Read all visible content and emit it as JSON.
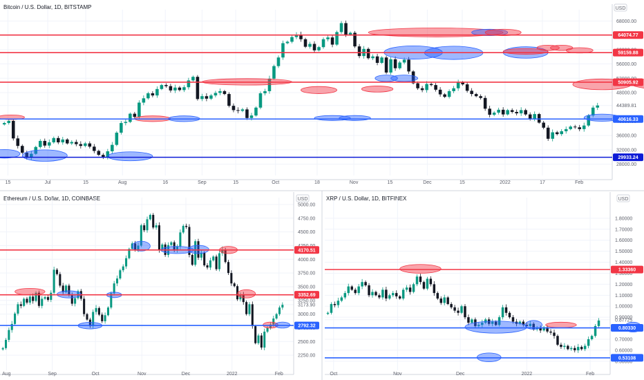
{
  "colors": {
    "up": "#089981",
    "down": "#131722",
    "red": "#f23645",
    "blue": "#2962ff",
    "redFill": "rgba(242,54,69,0.45)",
    "blueFill": "rgba(41,98,255,0.45)",
    "grid": "#f0f3fa",
    "axis": "#d1d4dc"
  },
  "chart_data": [
    {
      "type": "candlestick",
      "title": "Bitcoin / U.S. Dollar, 1D, BITSTAMP",
      "currency": "USD",
      "ylim": [
        26000,
        70000
      ],
      "y_ticks": [
        "68000.00",
        "64000.00",
        "60000.00",
        "56000.00",
        "52000.00",
        "48000.00",
        "44389.81",
        "40000.00",
        "36000.00",
        "32000.00",
        "28000.00"
      ],
      "x_ticks": [
        "15",
        "Jul",
        "15",
        "Aug",
        "16",
        "Sep",
        "15",
        "Oct",
        "18",
        "Nov",
        "15",
        "Dec",
        "15",
        "2022",
        "17",
        "Feb"
      ],
      "levels": [
        {
          "label": "64074.77",
          "color": "red"
        },
        {
          "label": "59159.88",
          "color": "red"
        },
        {
          "label": "50905.92",
          "color": "red"
        },
        {
          "label": "40616.33",
          "color": "blue"
        },
        {
          "label": "29933.24",
          "color": "darkblue"
        }
      ],
      "closes": [
        39500,
        40100,
        35200,
        33100,
        31200,
        29800,
        30900,
        32800,
        34500,
        33200,
        34100,
        35300,
        34100,
        34900,
        33800,
        34200,
        33600,
        33100,
        33800,
        32900,
        31700,
        30600,
        29900,
        31600,
        33400,
        36800,
        39500,
        39800,
        42100,
        41200,
        45200,
        46400,
        47800,
        47200,
        49000,
        50100,
        49800,
        48600,
        49400,
        48700,
        49500,
        51400,
        52400,
        46200,
        47000,
        46300,
        47200,
        47900,
        48400,
        47600,
        44300,
        43100,
        42900,
        43300,
        40900,
        41600,
        43800,
        47800,
        48400,
        51900,
        55400,
        57800,
        61800,
        62200,
        63500,
        64200,
        62900,
        60800,
        61600,
        59800,
        60700,
        62900,
        63400,
        61400,
        64900,
        67400,
        64200,
        64700,
        60900,
        58200,
        60200,
        57600,
        58100,
        56300,
        57800,
        53600,
        57300,
        54800,
        56400,
        57200,
        53900,
        50600,
        49200,
        48700,
        50400,
        50100,
        48800,
        47500,
        46800,
        48400,
        49200,
        50800,
        50300,
        48500,
        47600,
        47000,
        46500,
        43500,
        41800,
        42400,
        43200,
        41900,
        43100,
        42600,
        42200,
        43100,
        41900,
        40700,
        42000,
        39600,
        38200,
        35100,
        36900,
        36400,
        37200,
        37800,
        38500,
        38300,
        37800,
        38800,
        41600,
        43800,
        44400
      ],
      "ellipses": [
        {
          "c": "red",
          "i": 1.5,
          "v": 41100,
          "w": 6,
          "h": 1300
        },
        {
          "c": "blue",
          "i": 0,
          "v": 30900,
          "w": 7,
          "h": 2400
        },
        {
          "c": "blue",
          "i": 9,
          "v": 30400,
          "w": 10,
          "h": 3200
        },
        {
          "c": "blue",
          "i": 28,
          "v": 30200,
          "w": 10,
          "h": 2500
        },
        {
          "c": "red",
          "i": 33,
          "v": 40700,
          "w": 8,
          "h": 1600
        },
        {
          "c": "blue",
          "i": 40,
          "v": 40700,
          "w": 7,
          "h": 1600
        },
        {
          "c": "red",
          "i": 54,
          "v": 51000,
          "w": 20,
          "h": 1800
        },
        {
          "c": "red",
          "i": 70,
          "v": 48700,
          "w": 8,
          "h": 2000
        },
        {
          "c": "blue",
          "i": 73,
          "v": 40900,
          "w": 8,
          "h": 1400
        },
        {
          "c": "blue",
          "i": 78,
          "v": 40900,
          "w": 7,
          "h": 1400
        },
        {
          "c": "red",
          "i": 83,
          "v": 49000,
          "w": 7,
          "h": 1700
        },
        {
          "c": "blue",
          "i": 85,
          "v": 52000,
          "w": 5,
          "h": 1800
        },
        {
          "c": "blue",
          "i": 89,
          "v": 52000,
          "w": 6,
          "h": 1800
        },
        {
          "c": "red",
          "i": 96,
          "v": 64800,
          "w": 30,
          "h": 2500
        },
        {
          "c": "blue",
          "i": 91,
          "v": 59200,
          "w": 13,
          "h": 3700
        },
        {
          "c": "blue",
          "i": 100,
          "v": 59100,
          "w": 13,
          "h": 3700
        },
        {
          "c": "blue",
          "i": 108,
          "v": 64800,
          "w": 8,
          "h": 1800
        },
        {
          "c": "red",
          "i": 111,
          "v": 64800,
          "w": 8,
          "h": 1800
        },
        {
          "c": "blue",
          "i": 116,
          "v": 59200,
          "w": 10,
          "h": 3200
        },
        {
          "c": "red",
          "i": 116,
          "v": 59500,
          "w": 10,
          "h": 1600
        },
        {
          "c": "red",
          "i": 121,
          "v": 60500,
          "w": 5,
          "h": 1500
        },
        {
          "c": "red",
          "i": 124,
          "v": 60500,
          "w": 5,
          "h": 1500
        },
        {
          "c": "red",
          "i": 128,
          "v": 59800,
          "w": 6,
          "h": 1500
        },
        {
          "c": "red",
          "i": 133,
          "v": 50300,
          "w": 13,
          "h": 3000
        },
        {
          "c": "blue",
          "i": 133,
          "v": 41000,
          "w": 8,
          "h": 2000
        },
        {
          "c": "red",
          "i": 146,
          "v": 50500,
          "w": 13,
          "h": 3000
        },
        {
          "c": "blue",
          "i": 157,
          "v": 41100,
          "w": 8,
          "h": 2000
        },
        {
          "c": "red",
          "i": 164,
          "v": 40900,
          "w": 6,
          "h": 1400
        },
        {
          "c": "blue",
          "i": 170,
          "v": 40900,
          "w": 7,
          "h": 1600
        }
      ]
    },
    {
      "type": "candlestick",
      "title": "Ethereum / U.S. Dollar, 1D, COINBASE",
      "currency": "USD",
      "ylim": [
        2050,
        5050
      ],
      "y_ticks": [
        "5000.00",
        "4750.00",
        "4500.00",
        "4250.00",
        "4000.00",
        "3750.00",
        "3500.00",
        "3250.00",
        "3173.90",
        "3000.00",
        "2750.00",
        "2500.00",
        "2250.00"
      ],
      "x_ticks": [
        "Aug",
        "Sep",
        "Oct",
        "Nov",
        "Dec",
        "2022",
        "Feb"
      ],
      "levels": [
        {
          "label": "4170.51",
          "color": "red"
        },
        {
          "label": "3352.69",
          "color": "red"
        },
        {
          "label": "2792.32",
          "color": "blue"
        }
      ],
      "closes": [
        2380,
        2530,
        2710,
        2820,
        3010,
        3180,
        3150,
        3280,
        3210,
        3320,
        3240,
        3390,
        3150,
        3280,
        3310,
        3260,
        3390,
        3810,
        3730,
        3520,
        3400,
        3520,
        3350,
        3190,
        3290,
        3420,
        3280,
        3000,
        2900,
        2780,
        3040,
        3110,
        2990,
        2870,
        2980,
        3120,
        3380,
        3560,
        3650,
        3800,
        3870,
        4020,
        4190,
        4290,
        4180,
        4250,
        4620,
        4530,
        4730,
        4810,
        4580,
        4620,
        4170,
        4270,
        4080,
        4260,
        4310,
        4160,
        4230,
        4490,
        4610,
        4590,
        4080,
        3900,
        4330,
        4030,
        4120,
        3890,
        3850,
        3980,
        4050,
        3820,
        4110,
        4180,
        3950,
        3750,
        3560,
        3510,
        3270,
        3350,
        3220,
        3000,
        3180,
        2780,
        2470,
        2610,
        2390,
        2680,
        2750,
        2810,
        2920,
        3000,
        3120,
        3170
      ],
      "ellipses": [
        {
          "c": "red",
          "i": 9,
          "v": 3410,
          "w": 10,
          "h": 120
        },
        {
          "c": "blue",
          "i": 22,
          "v": 3360,
          "w": 8,
          "h": 130
        },
        {
          "c": "blue",
          "i": 29,
          "v": 2790,
          "w": 8,
          "h": 120
        },
        {
          "c": "blue",
          "i": 37,
          "v": 3350,
          "w": 5,
          "h": 100
        },
        {
          "c": "blue",
          "i": 46,
          "v": 4240,
          "w": 6,
          "h": 180
        },
        {
          "c": "blue",
          "i": 58,
          "v": 4170,
          "w": 11,
          "h": 130
        },
        {
          "c": "blue",
          "i": 65,
          "v": 4180,
          "w": 7,
          "h": 150
        },
        {
          "c": "red",
          "i": 75,
          "v": 4170,
          "w": 6,
          "h": 130
        },
        {
          "c": "red",
          "i": 81,
          "v": 3370,
          "w": 6,
          "h": 150
        },
        {
          "c": "red",
          "i": 89,
          "v": 2800,
          "w": 5,
          "h": 110
        },
        {
          "c": "blue",
          "i": 93,
          "v": 2800,
          "w": 5,
          "h": 110
        }
      ]
    },
    {
      "type": "candlestick",
      "title": "XRP / U.S. Dollar, 1D, BITFINEX",
      "currency": "USD",
      "ylim": [
        0.455,
        1.95
      ],
      "y_ticks": [
        "1.80000",
        "1.70000",
        "1.60000",
        "1.50000",
        "1.40000",
        "1.30000",
        "1.20000",
        "1.10000",
        "1.00000",
        "0.90000",
        "0.87725",
        "0.80000",
        "0.70000",
        "0.60000",
        "0.50000"
      ],
      "x_ticks": [
        "Oct",
        "Nov",
        "Dec",
        "2022",
        "Feb"
      ],
      "levels": [
        {
          "label": "1.33360",
          "color": "red"
        },
        {
          "label": "0.80330",
          "color": "blue"
        },
        {
          "label": "0.53108",
          "color": "blue"
        }
      ],
      "closes": [
        0.94,
        1.02,
        1.01,
        1.05,
        1.08,
        1.12,
        1.18,
        1.15,
        1.12,
        1.18,
        1.22,
        1.19,
        1.1,
        1.13,
        1.1,
        1.08,
        1.15,
        1.07,
        1.1,
        1.12,
        1.09,
        1.07,
        1.15,
        1.17,
        1.13,
        1.2,
        1.27,
        1.22,
        1.16,
        1.25,
        1.2,
        1.12,
        1.07,
        1.03,
        1.08,
        1.02,
        0.99,
        0.96,
        0.94,
        1.0,
        0.9,
        0.85,
        0.88,
        0.82,
        0.83,
        0.85,
        0.88,
        0.84,
        0.86,
        0.83,
        0.9,
        0.99,
        0.94,
        0.9,
        0.86,
        0.84,
        0.86,
        0.83,
        0.82,
        0.84,
        0.79,
        0.8,
        0.78,
        0.81,
        0.77,
        0.76,
        0.73,
        0.65,
        0.63,
        0.64,
        0.61,
        0.62,
        0.6,
        0.63,
        0.61,
        0.64,
        0.7,
        0.73,
        0.82,
        0.87
      ],
      "ellipses": [
        {
          "c": "red",
          "i": 27,
          "v": 1.34,
          "w": 12,
          "h": 0.08
        },
        {
          "c": "blue",
          "i": 49,
          "v": 0.81,
          "w": 18,
          "h": 0.11
        },
        {
          "c": "blue",
          "i": 47,
          "v": 0.535,
          "w": 7,
          "h": 0.08
        },
        {
          "c": "blue",
          "i": 60,
          "v": 0.83,
          "w": 5,
          "h": 0.08
        },
        {
          "c": "red",
          "i": 68,
          "v": 0.83,
          "w": 9,
          "h": 0.05
        },
        {
          "c": "blue",
          "i": 89,
          "v": 0.81,
          "w": 5,
          "h": 0.09
        }
      ]
    }
  ]
}
